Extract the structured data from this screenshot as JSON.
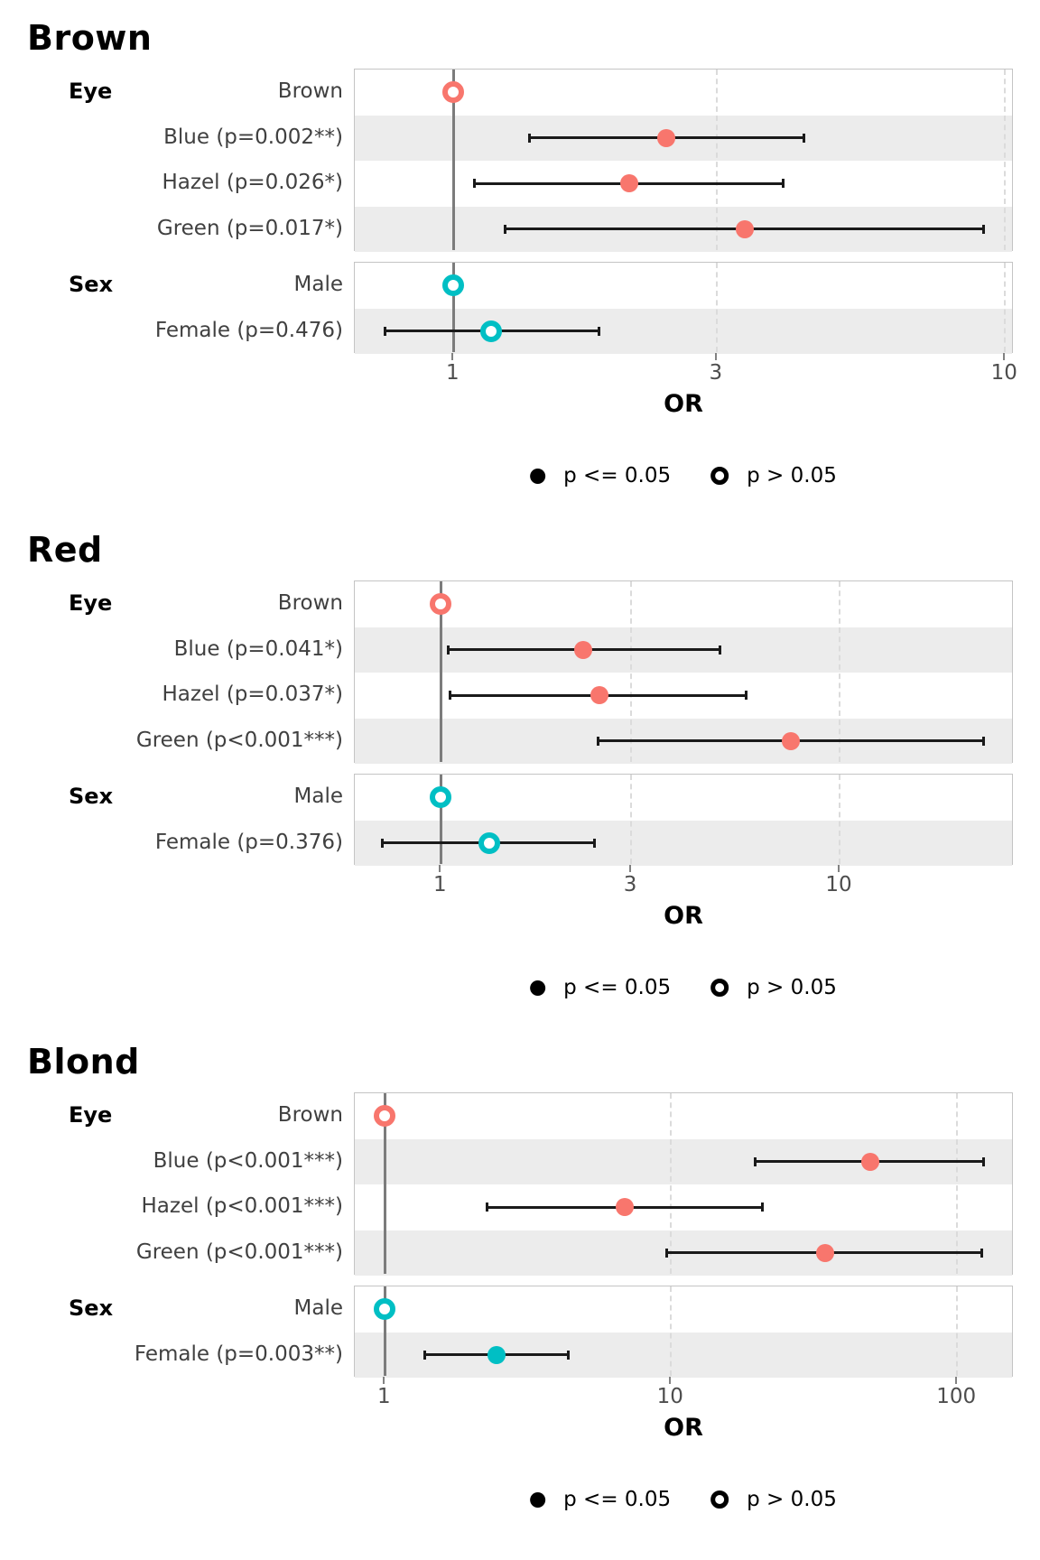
{
  "page": {
    "background": "#ffffff"
  },
  "colors": {
    "eye_group": "#F8766D",
    "sex_group": "#00BFC4",
    "stripe": "#ececec",
    "panel_border": "#c4c4c4",
    "reference_line": "#7c7c7c",
    "gridline": "#dbdbdb",
    "ci_bar": "#1a1a1a",
    "legend_marker": "#000000"
  },
  "legend": {
    "items": [
      {
        "marker": "filled",
        "label": "p <= 0.05"
      },
      {
        "marker": "open",
        "label": "p > 0.05"
      }
    ]
  },
  "chart_data": [
    {
      "type": "scatter",
      "subtype": "forest-plot",
      "title": "Brown",
      "xlabel": "OR",
      "x_scale": "log10",
      "x_ticks": [
        1,
        3,
        10
      ],
      "x_domain_log10": [
        -0.179,
        1.016
      ],
      "grid": "dashed-vertical-at-ticks",
      "legend_position": "bottom-center",
      "groups": [
        {
          "name": "Eye",
          "color": "#F8766D",
          "rows": [
            {
              "label": "Brown",
              "or": 1.0,
              "ci_low": null,
              "ci_high": null,
              "reference": true,
              "significant": false,
              "marker": "open"
            },
            {
              "label": "Blue (p=0.002**)",
              "or": 2.43,
              "ci_low": 1.37,
              "ci_high": 4.33,
              "reference": false,
              "significant": true,
              "marker": "filled"
            },
            {
              "label": "Hazel (p=0.026*)",
              "or": 2.08,
              "ci_low": 1.09,
              "ci_high": 3.97,
              "reference": false,
              "significant": true,
              "marker": "filled"
            },
            {
              "label": "Green (p=0.017*)",
              "or": 3.38,
              "ci_low": 1.24,
              "ci_high": 9.17,
              "reference": false,
              "significant": true,
              "marker": "filled"
            }
          ]
        },
        {
          "name": "Sex",
          "color": "#00BFC4",
          "rows": [
            {
              "label": "Male",
              "or": 1.0,
              "ci_low": null,
              "ci_high": null,
              "reference": true,
              "significant": false,
              "marker": "open"
            },
            {
              "label": "Female (p=0.476)",
              "or": 1.17,
              "ci_low": 0.75,
              "ci_high": 1.84,
              "reference": false,
              "significant": false,
              "marker": "open"
            }
          ]
        }
      ]
    },
    {
      "type": "scatter",
      "subtype": "forest-plot",
      "title": "Red",
      "xlabel": "OR",
      "x_scale": "log10",
      "x_ticks": [
        1,
        3,
        10
      ],
      "x_domain_log10": [
        -0.216,
        1.437
      ],
      "grid": "dashed-vertical-at-ticks",
      "legend_position": "bottom-center",
      "groups": [
        {
          "name": "Eye",
          "color": "#F8766D",
          "rows": [
            {
              "label": "Brown",
              "or": 1.0,
              "ci_low": null,
              "ci_high": null,
              "reference": true,
              "significant": false,
              "marker": "open"
            },
            {
              "label": "Blue (p=0.041*)",
              "or": 2.28,
              "ci_low": 1.04,
              "ci_high": 5.03,
              "reference": false,
              "significant": true,
              "marker": "filled"
            },
            {
              "label": "Hazel (p=0.037*)",
              "or": 2.5,
              "ci_low": 1.05,
              "ci_high": 5.85,
              "reference": false,
              "significant": true,
              "marker": "filled"
            },
            {
              "label": "Green (p<0.001***)",
              "or": 7.56,
              "ci_low": 2.47,
              "ci_high": 23.0,
              "reference": false,
              "significant": true,
              "marker": "filled"
            }
          ]
        },
        {
          "name": "Sex",
          "color": "#00BFC4",
          "rows": [
            {
              "label": "Male",
              "or": 1.0,
              "ci_low": null,
              "ci_high": null,
              "reference": true,
              "significant": false,
              "marker": "open"
            },
            {
              "label": "Female (p=0.376)",
              "or": 1.32,
              "ci_low": 0.71,
              "ci_high": 2.43,
              "reference": false,
              "significant": false,
              "marker": "open"
            }
          ]
        }
      ]
    },
    {
      "type": "scatter",
      "subtype": "forest-plot",
      "title": "Blond",
      "xlabel": "OR",
      "x_scale": "log10",
      "x_ticks": [
        1,
        10,
        100
      ],
      "x_domain_log10": [
        -0.105,
        2.198
      ],
      "grid": "dashed-vertical-at-ticks",
      "legend_position": "bottom-center",
      "groups": [
        {
          "name": "Eye",
          "color": "#F8766D",
          "rows": [
            {
              "label": "Brown",
              "or": 1.0,
              "ci_low": null,
              "ci_high": null,
              "reference": true,
              "significant": false,
              "marker": "open"
            },
            {
              "label": "Blue (p<0.001***)",
              "or": 49.6,
              "ci_low": 19.6,
              "ci_high": 124,
              "reference": false,
              "significant": true,
              "marker": "filled"
            },
            {
              "label": "Hazel (p<0.001***)",
              "or": 6.91,
              "ci_low": 2.26,
              "ci_high": 20.9,
              "reference": false,
              "significant": true,
              "marker": "filled"
            },
            {
              "label": "Green (p<0.001***)",
              "or": 34.5,
              "ci_low": 9.6,
              "ci_high": 122,
              "reference": false,
              "significant": true,
              "marker": "filled"
            }
          ]
        },
        {
          "name": "Sex",
          "color": "#00BFC4",
          "rows": [
            {
              "label": "Male",
              "or": 1.0,
              "ci_low": null,
              "ci_high": null,
              "reference": true,
              "significant": false,
              "marker": "open"
            },
            {
              "label": "Female (p=0.003**)",
              "or": 2.45,
              "ci_low": 1.37,
              "ci_high": 4.38,
              "reference": false,
              "significant": true,
              "marker": "filled"
            }
          ]
        }
      ]
    }
  ]
}
